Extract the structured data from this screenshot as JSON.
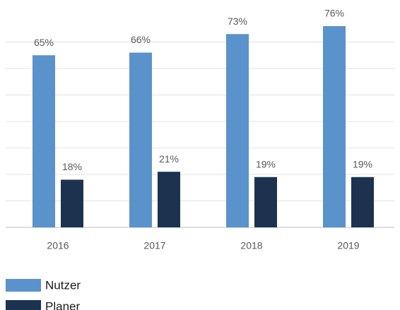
{
  "chart_data": {
    "type": "bar",
    "categories": [
      "2016",
      "2017",
      "2018",
      "2019"
    ],
    "series": [
      {
        "name": "Nutzer",
        "color": "#5a92cc",
        "values": [
          65,
          66,
          73,
          76
        ],
        "value_labels": [
          "65%",
          "66%",
          "73%",
          "76%"
        ]
      },
      {
        "name": "Planer",
        "color": "#1c324f",
        "values": [
          18,
          21,
          19,
          19
        ],
        "value_labels": [
          "18%",
          "21%",
          "19%",
          "19%"
        ]
      }
    ],
    "ylim": [
      0,
      80
    ],
    "yticks": [
      0,
      10,
      20,
      30,
      40,
      50,
      60,
      70,
      80
    ],
    "grid": true,
    "legend": "bottom-left"
  }
}
